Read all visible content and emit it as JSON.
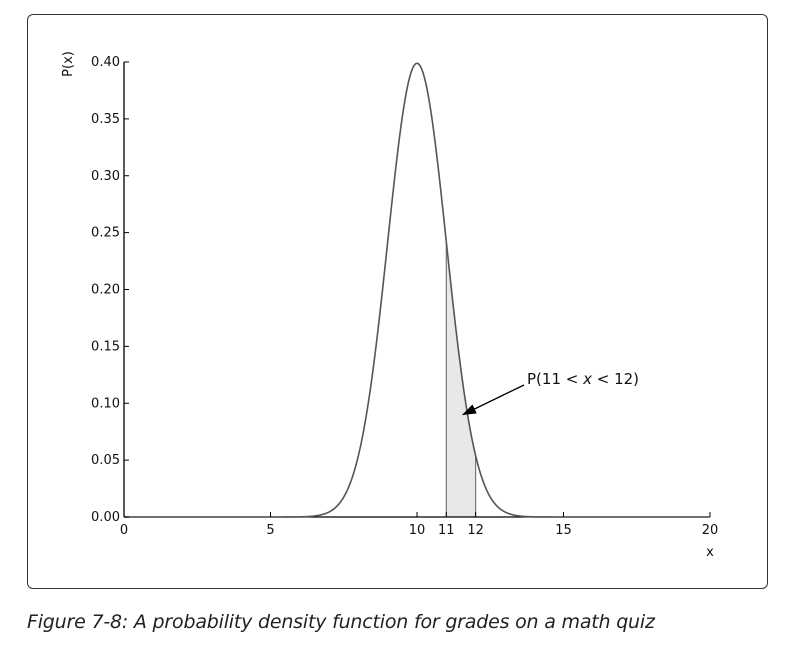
{
  "figure": {
    "caption": "Figure 7-8: A probability density function for grades on a math quiz"
  },
  "chart_data": {
    "type": "line",
    "title": "",
    "xlabel": "x",
    "ylabel": "P(x)",
    "xlim": [
      0,
      20
    ],
    "ylim": [
      0,
      0.4
    ],
    "x_ticks": [
      0,
      5,
      10,
      11,
      12,
      15,
      20
    ],
    "x_tick_labels": [
      "0",
      "5",
      "10",
      "11",
      "12",
      "15",
      "20"
    ],
    "y_ticks": [
      0.0,
      0.05,
      0.1,
      0.15,
      0.2,
      0.25,
      0.3,
      0.35,
      0.4
    ],
    "y_tick_labels": [
      "0.00",
      "0.05",
      "0.10",
      "0.15",
      "0.20",
      "0.25",
      "0.30",
      "0.35",
      "0.40"
    ],
    "grid": false,
    "series": [
      {
        "distribution": "normal",
        "mean": 10,
        "std": 1,
        "x": [
          0,
          5,
          6,
          6.5,
          7,
          7.5,
          8,
          8.5,
          9,
          9.5,
          10,
          10.5,
          11,
          11.5,
          12,
          12.5,
          13,
          13.5,
          14,
          15,
          20
        ],
        "y": [
          0.0,
          0.0,
          0.0001,
          0.0009,
          0.0044,
          0.0175,
          0.054,
          0.1295,
          0.242,
          0.3521,
          0.3989,
          0.3521,
          0.242,
          0.1295,
          0.054,
          0.0175,
          0.0044,
          0.0009,
          0.0001,
          0.0,
          0.0
        ],
        "color": "#555555"
      }
    ],
    "shaded_region": {
      "x_from": 11,
      "x_to": 12,
      "color": "#e8e8e8"
    },
    "annotations": [
      {
        "parts": [
          "P(11 <",
          "x",
          "< 12)"
        ],
        "points_to": [
          11.5,
          0.09
        ],
        "arrow": true
      }
    ]
  }
}
